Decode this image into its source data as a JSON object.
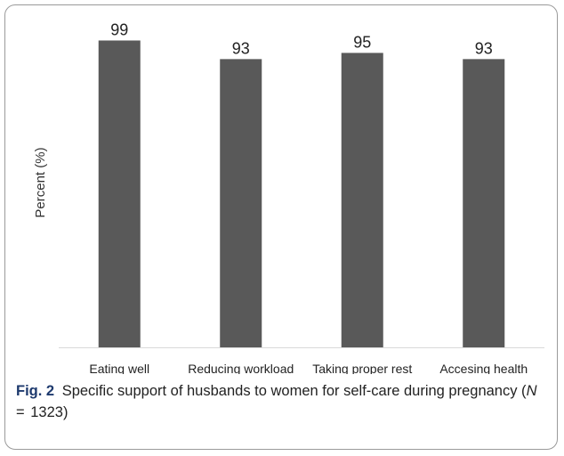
{
  "chart_data": {
    "type": "bar",
    "categories": [
      "Eating well",
      "Reducing workload",
      "Taking proper rest",
      "Accesing health services"
    ],
    "values": [
      99,
      93,
      95,
      93
    ],
    "xlabel": "",
    "ylabel": "Percent (%)",
    "ylim": [
      0,
      100
    ],
    "grid": false,
    "legend": "none",
    "bar_color": "#595959",
    "axis_color": "#d9d9d9"
  },
  "caption": {
    "label": "Fig. 2",
    "text": "Specific support of husbands to women for self-care during pregnancy (",
    "n_symbol": "N",
    "n_equals": "=",
    "n_value": "1323",
    "close": ")"
  }
}
